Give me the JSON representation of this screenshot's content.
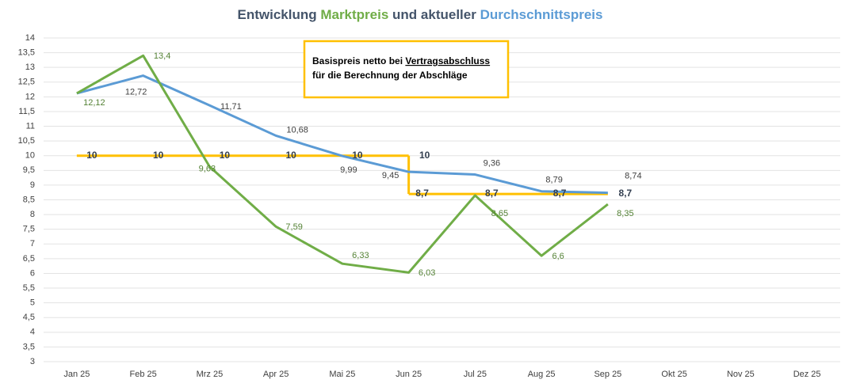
{
  "chart_data": {
    "type": "line",
    "title": [
      "Entwicklung ",
      "Marktpreis",
      " und aktueller ",
      "Durchschnittspreis"
    ],
    "annotation": [
      "Basispreis netto bei ",
      "Vertragsabschluss",
      "für die Berechnung der Abschläge"
    ],
    "categories": [
      "Jan 25",
      "Feb 25",
      "Mrz 25",
      "Apr 25",
      "Mai 25",
      "Jun 25",
      "Jul 25",
      "Aug 25",
      "Sep 25",
      "Okt 25",
      "Nov 25",
      "Dez 25"
    ],
    "series": [
      {
        "name": "Marktpreis",
        "color": "#70ad47",
        "values": [
          12.12,
          13.4,
          9.63,
          7.59,
          6.33,
          6.03,
          8.65,
          6.6,
          8.35,
          null,
          null,
          null
        ],
        "value_labels": [
          "12,12",
          "13,4",
          "9,63",
          "7,59",
          "6,33",
          "6,03",
          "8,65",
          "6,6",
          "8,35",
          null,
          null,
          null
        ]
      },
      {
        "name": "Durchschnittspreis",
        "color": "#5b9bd5",
        "values": [
          12.12,
          12.72,
          11.71,
          10.68,
          9.99,
          9.45,
          9.36,
          8.79,
          8.74,
          null,
          null,
          null
        ],
        "value_labels": [
          null,
          "12,72",
          "11,71",
          "10,68",
          "9,99",
          "9,45",
          "9,36",
          "8,79",
          "8,74",
          null,
          null,
          null
        ]
      },
      {
        "color": "#ffc000",
        "values": [
          10,
          10,
          10,
          10,
          10,
          10,
          null,
          null,
          null,
          null,
          null,
          null
        ]
      },
      {
        "color": "#ffc000",
        "values": [
          null,
          null,
          null,
          null,
          null,
          8.7,
          8.7,
          8.7,
          8.7,
          null,
          null,
          null
        ],
        "value_labels": [
          null,
          null,
          null,
          null,
          null,
          "8,7",
          "8,7",
          "8,7",
          "8,7",
          null,
          null,
          null
        ]
      }
    ],
    "ylim": [
      3,
      14
    ],
    "yticks": [
      3,
      {
        "value": 3.5,
        "label": "3,5"
      },
      4,
      {
        "value": 4.5,
        "label": "4,5"
      },
      5,
      {
        "value": 5.5,
        "label": "5,5"
      },
      6,
      {
        "value": 6.5,
        "label": "6,5"
      },
      7,
      {
        "value": 7.5,
        "label": "7,5"
      },
      8,
      {
        "value": 8.5,
        "label": "8,5"
      },
      9,
      {
        "value": 9.5,
        "label": "9,5"
      },
      10,
      {
        "value": 10.5,
        "label": "10,5"
      },
      11,
      {
        "value": 11.5,
        "label": "11,5"
      },
      12,
      {
        "value": 12.5,
        "label": "12,5"
      },
      13,
      {
        "value": 13.5,
        "label": "13,5"
      },
      14
    ],
    "grid": true
  }
}
